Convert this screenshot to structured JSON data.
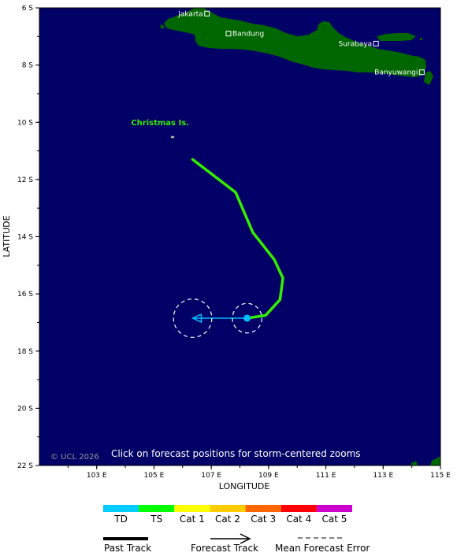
{
  "map": {
    "lon_range": [
      101,
      115
    ],
    "lat_range": [
      -22,
      -6
    ],
    "ocean_color": "#000066",
    "land_color": "#006600",
    "x_axis_title": "LONGITUDE",
    "y_axis_title": "LATITUDE",
    "x_ticks": [
      {
        "value": 103,
        "label": "103 E"
      },
      {
        "value": 105,
        "label": "105 E"
      },
      {
        "value": 107,
        "label": "107 E"
      },
      {
        "value": 109,
        "label": "109 E"
      },
      {
        "value": 111,
        "label": "111 E"
      },
      {
        "value": 113,
        "label": "113 E"
      },
      {
        "value": 115,
        "label": "115 E"
      }
    ],
    "y_ticks": [
      {
        "value": -6,
        "label": "6 S"
      },
      {
        "value": -8,
        "label": "8 S"
      },
      {
        "value": -10,
        "label": "10 S"
      },
      {
        "value": -12,
        "label": "12 S"
      },
      {
        "value": -14,
        "label": "14 S"
      },
      {
        "value": -16,
        "label": "16 S"
      },
      {
        "value": -18,
        "label": "18 S"
      },
      {
        "value": -20,
        "label": "20 S"
      },
      {
        "value": -22,
        "label": "22 S"
      }
    ],
    "cities": [
      {
        "name": "Jakarta",
        "lon": 106.85,
        "lat": -6.2,
        "label_side": "left"
      },
      {
        "name": "Bandung",
        "lon": 107.6,
        "lat": -6.9,
        "label_side": "right"
      },
      {
        "name": "Surabaya",
        "lon": 112.75,
        "lat": -7.25,
        "label_side": "left"
      },
      {
        "name": "Banyuwangi",
        "lon": 114.35,
        "lat": -8.25,
        "label_side": "left"
      }
    ],
    "island_label": {
      "text": "Christmas Is.",
      "lon": 104.2,
      "lat": -10.1
    },
    "overlay_text": "Click on forecast positions for storm-centered zooms",
    "copyright": "© UCL 2026"
  },
  "track": {
    "past_color": "#33ee00",
    "forecast_color": "#00bbff",
    "past": [
      {
        "lon": 106.35,
        "lat": -11.3
      },
      {
        "lon": 107.85,
        "lat": -12.45
      },
      {
        "lon": 108.45,
        "lat": -13.85
      },
      {
        "lon": 109.2,
        "lat": -14.8
      },
      {
        "lon": 109.5,
        "lat": -15.45
      },
      {
        "lon": 109.4,
        "lat": -16.2
      },
      {
        "lon": 108.9,
        "lat": -16.75
      },
      {
        "lon": 108.25,
        "lat": -16.85
      }
    ],
    "current": {
      "lon": 108.25,
      "lat": -16.85
    },
    "forecast": [
      {
        "lon": 108.25,
        "lat": -16.85
      },
      {
        "lon": 106.35,
        "lat": -16.85
      }
    ],
    "error_circles": [
      {
        "lon": 108.25,
        "lat": -16.85,
        "radius_deg": 0.5
      },
      {
        "lon": 106.35,
        "lat": -16.85,
        "radius_deg": 0.65
      }
    ]
  },
  "legend": {
    "categories": [
      {
        "label": "TD",
        "color": "#00ccff"
      },
      {
        "label": "TS",
        "color": "#00ff00"
      },
      {
        "label": "Cat 1",
        "color": "#ffff00"
      },
      {
        "label": "Cat 2",
        "color": "#ffcc00"
      },
      {
        "label": "Cat 3",
        "color": "#ff6600"
      },
      {
        "label": "Cat 4",
        "color": "#ff0000"
      },
      {
        "label": "Cat 5",
        "color": "#cc00cc"
      }
    ],
    "past_track_label": "Past Track",
    "forecast_track_label": "Forecast Track",
    "mean_error_label": "Mean Forecast Error"
  }
}
